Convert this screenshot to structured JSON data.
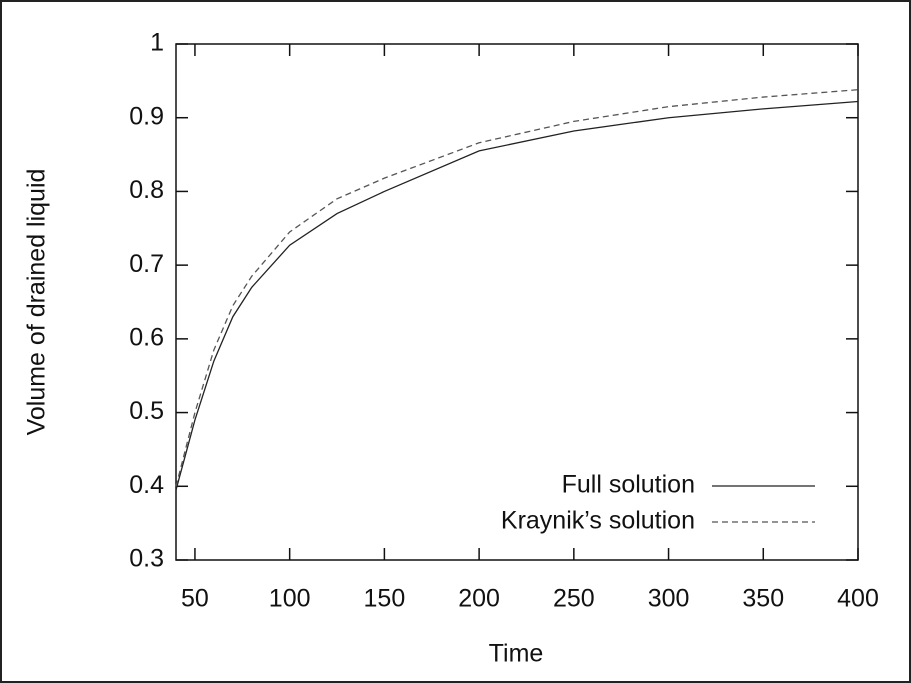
{
  "chart_data": {
    "type": "line",
    "xlabel": "Time",
    "ylabel": "Volume of drained liquid",
    "x": [
      40,
      50,
      60,
      70,
      80,
      100,
      125,
      150,
      200,
      250,
      300,
      350,
      400
    ],
    "series": [
      {
        "name": "Full solution",
        "color": "#222222",
        "style": "solid",
        "values": [
          0.395,
          0.49,
          0.57,
          0.63,
          0.67,
          0.727,
          0.77,
          0.8,
          0.855,
          0.882,
          0.9,
          0.912,
          0.922
        ]
      },
      {
        "name": "Kraynik’s solution",
        "color": "#555555",
        "style": "dashed",
        "values": [
          0.4,
          0.5,
          0.585,
          0.645,
          0.685,
          0.745,
          0.79,
          0.818,
          0.866,
          0.895,
          0.915,
          0.928,
          0.938
        ]
      }
    ],
    "xlim": [
      40,
      400
    ],
    "xticks": [
      50,
      100,
      150,
      200,
      250,
      300,
      350,
      400
    ],
    "ylim": [
      0.3,
      1
    ],
    "yticks": [
      0.3,
      0.4,
      0.5,
      0.6,
      0.7,
      0.8,
      0.9,
      1
    ],
    "grid": false,
    "legend": "lower right"
  }
}
